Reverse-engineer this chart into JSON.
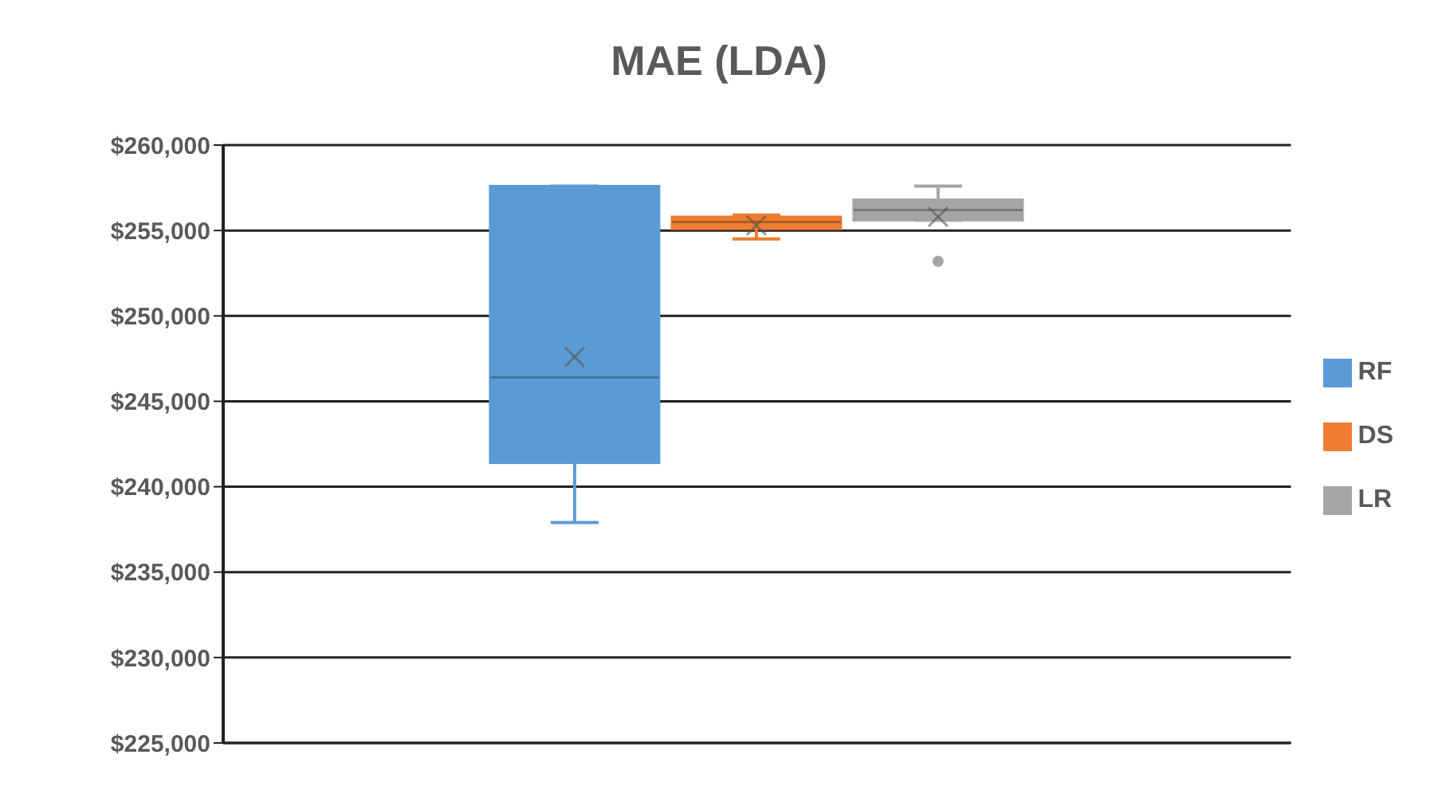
{
  "chart_data": {
    "type": "box",
    "title": "MAE (LDA)",
    "categories": [
      null
    ],
    "series": [
      {
        "name": "RF",
        "color": "#5b9bd5",
        "boxes": [
          {
            "low": 237900,
            "q1": 241400,
            "median": 246400,
            "q3": 257600,
            "high": 257600,
            "mean": 247600
          }
        ]
      },
      {
        "name": "DS",
        "color": "#ed7d31",
        "boxes": [
          {
            "low": 254500,
            "q1": 255100,
            "median": 255500,
            "q3": 255800,
            "high": 255900,
            "mean": 255300
          }
        ]
      },
      {
        "name": "LR",
        "color": "#a5a5a5",
        "boxes": [
          {
            "low": 255600,
            "q1": 255600,
            "median": 256200,
            "q3": 256800,
            "high": 257600,
            "mean": 255800,
            "outliers": [
              253200
            ]
          }
        ]
      }
    ],
    "ylim": [
      225000,
      260000
    ],
    "yticks": [
      {
        "value": 225000,
        "label": "$225,000"
      },
      {
        "value": 230000,
        "label": "$230,000"
      },
      {
        "value": 235000,
        "label": "$235,000"
      },
      {
        "value": 240000,
        "label": "$240,000"
      },
      {
        "value": 245000,
        "label": "$245,000"
      },
      {
        "value": 250000,
        "label": "$250,000"
      },
      {
        "value": 255000,
        "label": "$255,000"
      },
      {
        "value": 260000,
        "label": "$260,000"
      }
    ],
    "grid": "y",
    "legend": "right"
  }
}
